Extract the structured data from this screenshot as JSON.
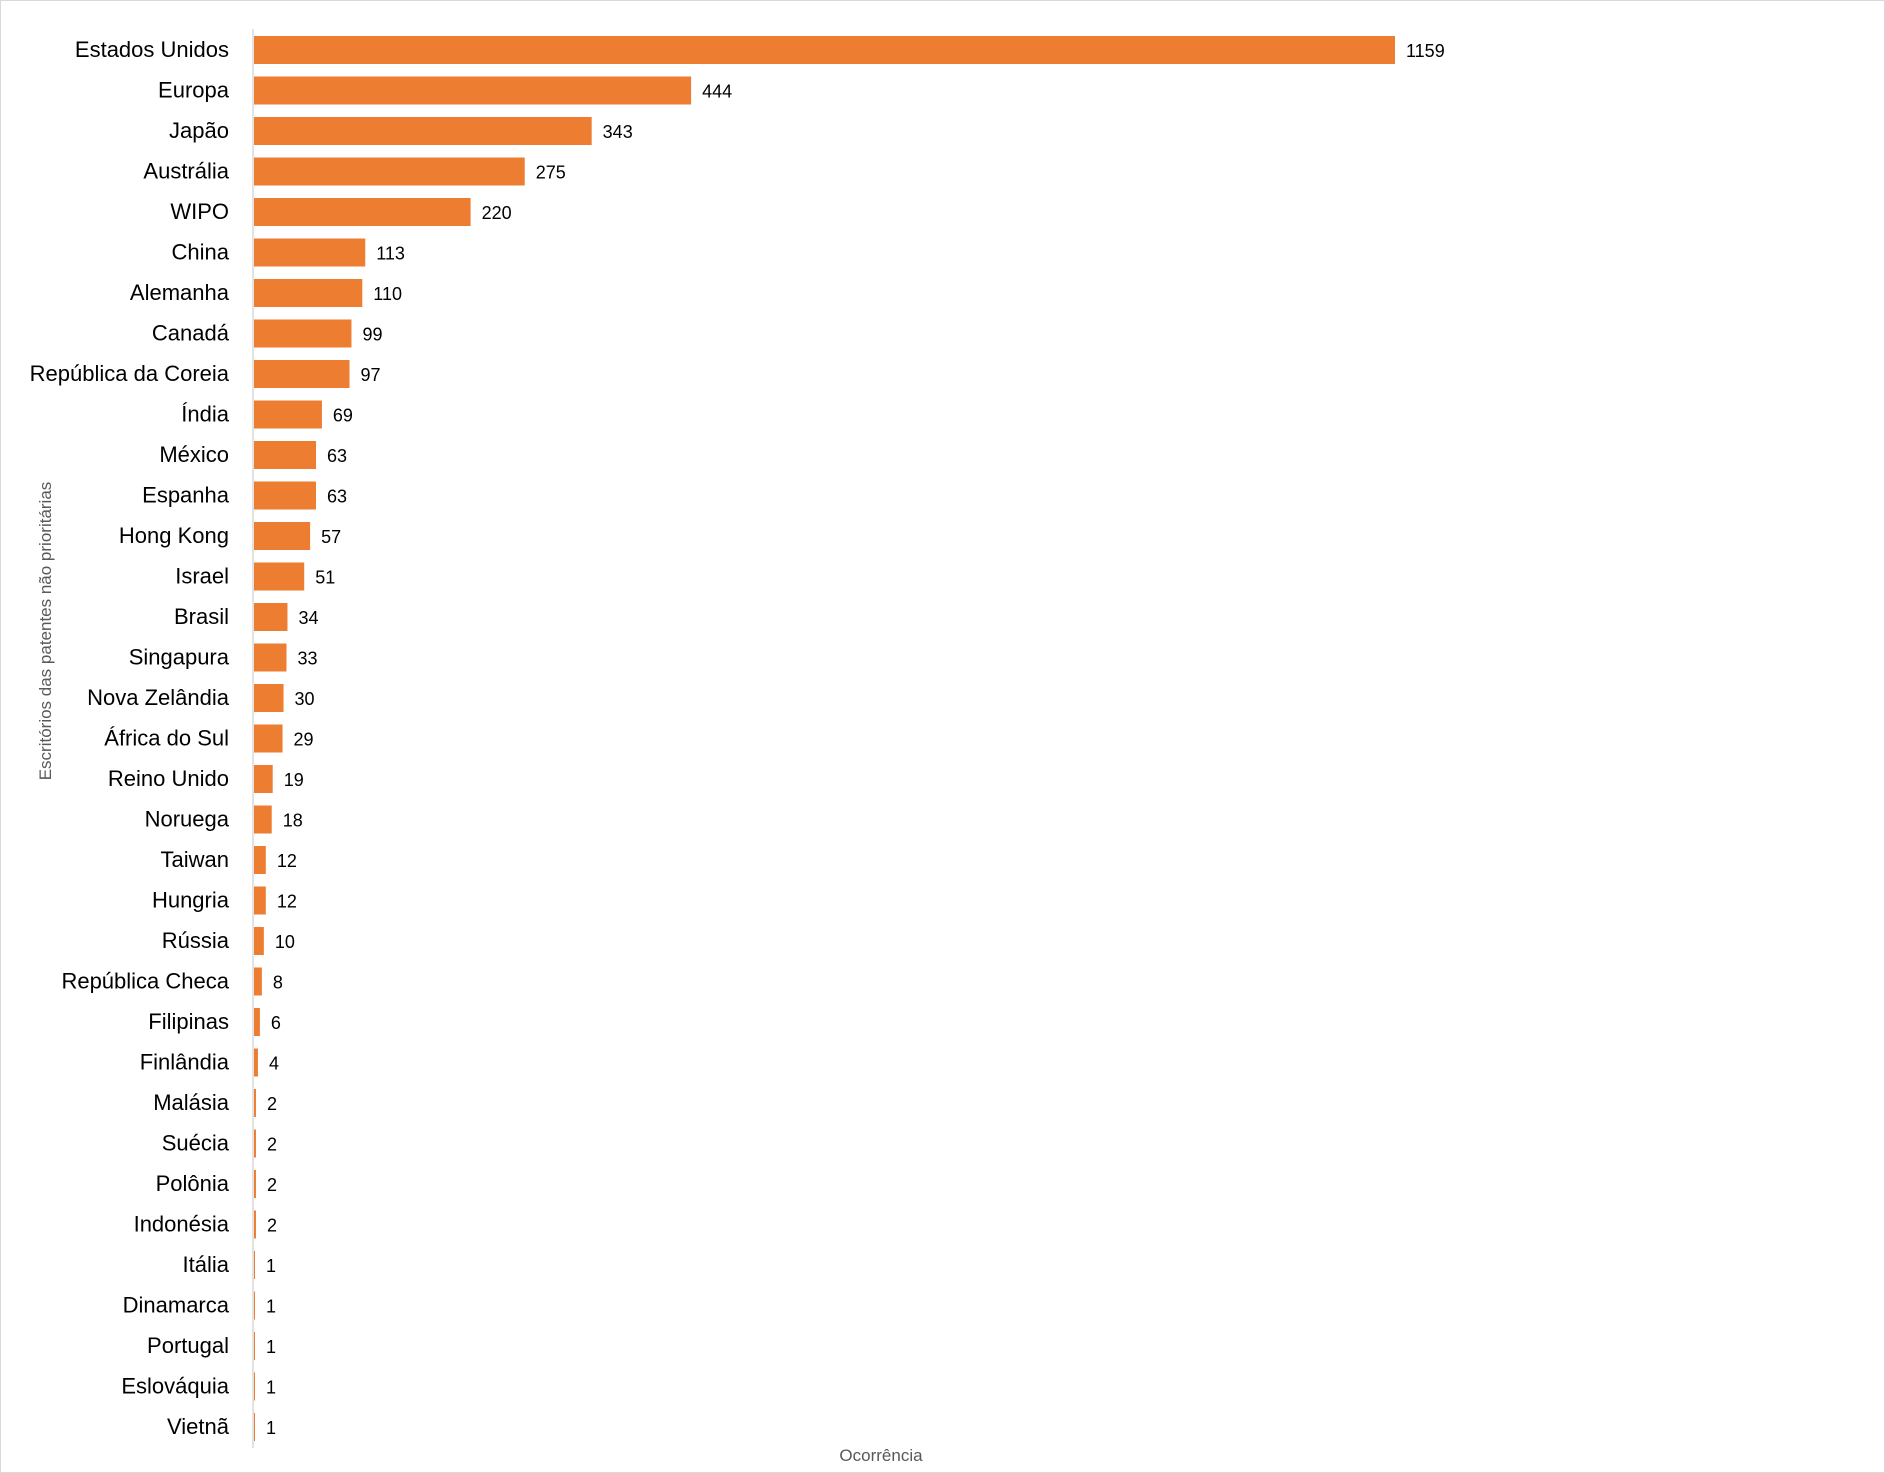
{
  "chart_data": {
    "type": "bar",
    "orientation": "horizontal",
    "title": "",
    "xlabel": "Ocorrência",
    "ylabel": "Escritórios das patentes não prioritárias",
    "categories": [
      "Estados Unidos",
      "Europa",
      "Japão",
      "Austrália",
      "WIPO",
      "China",
      "Alemanha",
      "Canadá",
      "República da Coreia",
      "Índia",
      "México",
      "Espanha",
      "Hong Kong",
      "Israel",
      "Brasil",
      "Singapura",
      "Nova Zelândia",
      "África do Sul",
      "Reino Unido",
      "Noruega",
      "Taiwan",
      "Hungria",
      "Rússia",
      "República Checa",
      "Filipinas",
      "Finlândia",
      "Malásia",
      "Suécia",
      "Polônia",
      "Indonésia",
      "Itália",
      "Dinamarca",
      "Portugal",
      "Eslováquia",
      "Vietnã"
    ],
    "values": [
      1159,
      444,
      343,
      275,
      220,
      113,
      110,
      99,
      97,
      69,
      63,
      63,
      57,
      51,
      34,
      33,
      30,
      29,
      19,
      18,
      12,
      12,
      10,
      8,
      6,
      4,
      2,
      2,
      2,
      2,
      1,
      1,
      1,
      1,
      1
    ],
    "xlim": [
      0,
      1600
    ],
    "grid": false,
    "legend": "none",
    "bar_color": "#ED7D31",
    "axis_color": "#d9d9d9"
  }
}
